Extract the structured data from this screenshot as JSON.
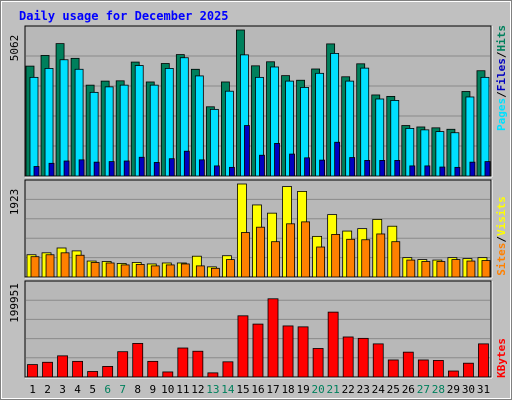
{
  "title": "Daily usage for December 2025",
  "colors": {
    "background": "#c0c0c0",
    "plot_background": "#b8b8b8",
    "title_text": "#0000ff",
    "hits": "#00805c",
    "files": "#00e0ff",
    "pages": "#0000c0",
    "visits": "#ffff00",
    "sites": "#ff8000",
    "kbytes": "#ff0000",
    "weekend_label": "#00805c",
    "weekday_label": "#000000",
    "gridline": "#0000ff"
  },
  "chart_data": [
    {
      "type": "bar",
      "panel": "hits-files-pages",
      "ymax_label": "5062",
      "ylim": [
        0,
        5062
      ],
      "legend": {
        "pages": "Pages",
        "files": "Files",
        "hits": "Hits",
        "sep1": "/",
        "sep2": "/"
      },
      "categories": [
        "1",
        "2",
        "3",
        "4",
        "5",
        "6",
        "7",
        "8",
        "9",
        "10",
        "11",
        "12",
        "13",
        "14",
        "15",
        "16",
        "17",
        "18",
        "19",
        "20",
        "21",
        "22",
        "23",
        "24",
        "25",
        "26",
        "27",
        "28",
        "29",
        "30",
        "31"
      ],
      "weekend_days": [
        "6",
        "7",
        "13",
        "14",
        "20",
        "21",
        "27",
        "28"
      ],
      "series": [
        {
          "name": "Hits",
          "values": [
            3810,
            4180,
            4590,
            4080,
            3150,
            3290,
            3300,
            3950,
            3260,
            3900,
            4210,
            3700,
            2400,
            3260,
            5062,
            3820,
            3960,
            3480,
            3320,
            3710,
            4580,
            3440,
            3890,
            2810,
            2760,
            1750,
            1700,
            1670,
            1620,
            2930,
            3650
          ]
        },
        {
          "name": "Files",
          "values": [
            3420,
            3730,
            4030,
            3700,
            2900,
            3090,
            3150,
            3830,
            3150,
            3730,
            4100,
            3470,
            2310,
            2940,
            4200,
            3420,
            3780,
            3290,
            3070,
            3560,
            4250,
            3290,
            3740,
            2670,
            2620,
            1650,
            1600,
            1540,
            1500,
            2740,
            3420
          ]
        },
        {
          "name": "Pages",
          "values": [
            330,
            440,
            520,
            560,
            480,
            500,
            520,
            650,
            470,
            600,
            860,
            560,
            350,
            300,
            1750,
            720,
            1130,
            760,
            630,
            550,
            1170,
            640,
            540,
            540,
            540,
            350,
            350,
            310,
            300,
            480,
            500
          ]
        }
      ]
    },
    {
      "type": "bar",
      "panel": "sites-visits",
      "ymax_label": "1923",
      "ylim": [
        0,
        1923
      ],
      "legend": {
        "sites": "Sites",
        "visits": "Visits",
        "sep": "/"
      },
      "categories": [
        "1",
        "2",
        "3",
        "4",
        "5",
        "6",
        "7",
        "8",
        "9",
        "10",
        "11",
        "12",
        "13",
        "14",
        "15",
        "16",
        "17",
        "18",
        "19",
        "20",
        "21",
        "22",
        "23",
        "24",
        "25",
        "26",
        "27",
        "28",
        "29",
        "30",
        "31"
      ],
      "series": [
        {
          "name": "Visits",
          "values": [
            460,
            500,
            600,
            540,
            330,
            320,
            280,
            300,
            270,
            290,
            290,
            430,
            210,
            440,
            1923,
            1490,
            1320,
            1870,
            1770,
            840,
            1290,
            950,
            1000,
            1190,
            1050,
            400,
            360,
            350,
            400,
            380,
            400
          ]
        },
        {
          "name": "Sites",
          "values": [
            420,
            460,
            500,
            450,
            300,
            290,
            250,
            260,
            230,
            250,
            270,
            230,
            180,
            360,
            920,
            1030,
            730,
            1100,
            1140,
            620,
            880,
            780,
            770,
            890,
            730,
            350,
            320,
            320,
            360,
            330,
            340
          ]
        }
      ]
    },
    {
      "type": "bar",
      "panel": "kbytes",
      "ymax_label": "199951",
      "ylim": [
        0,
        199951
      ],
      "legend": {
        "kbytes": "KBytes"
      },
      "categories": [
        "1",
        "2",
        "3",
        "4",
        "5",
        "6",
        "7",
        "8",
        "9",
        "10",
        "11",
        "12",
        "13",
        "14",
        "15",
        "16",
        "17",
        "18",
        "19",
        "20",
        "21",
        "22",
        "23",
        "24",
        "25",
        "26",
        "27",
        "28",
        "29",
        "30",
        "31"
      ],
      "series": [
        {
          "name": "KBytes",
          "values": [
            27000,
            32000,
            46000,
            34000,
            12000,
            23000,
            55000,
            73000,
            34000,
            11000,
            63000,
            56000,
            9000,
            33000,
            133000,
            115000,
            170000,
            111000,
            109000,
            62000,
            141000,
            87000,
            84000,
            72000,
            37000,
            54000,
            37000,
            36000,
            13000,
            30000,
            72000
          ]
        }
      ]
    }
  ]
}
